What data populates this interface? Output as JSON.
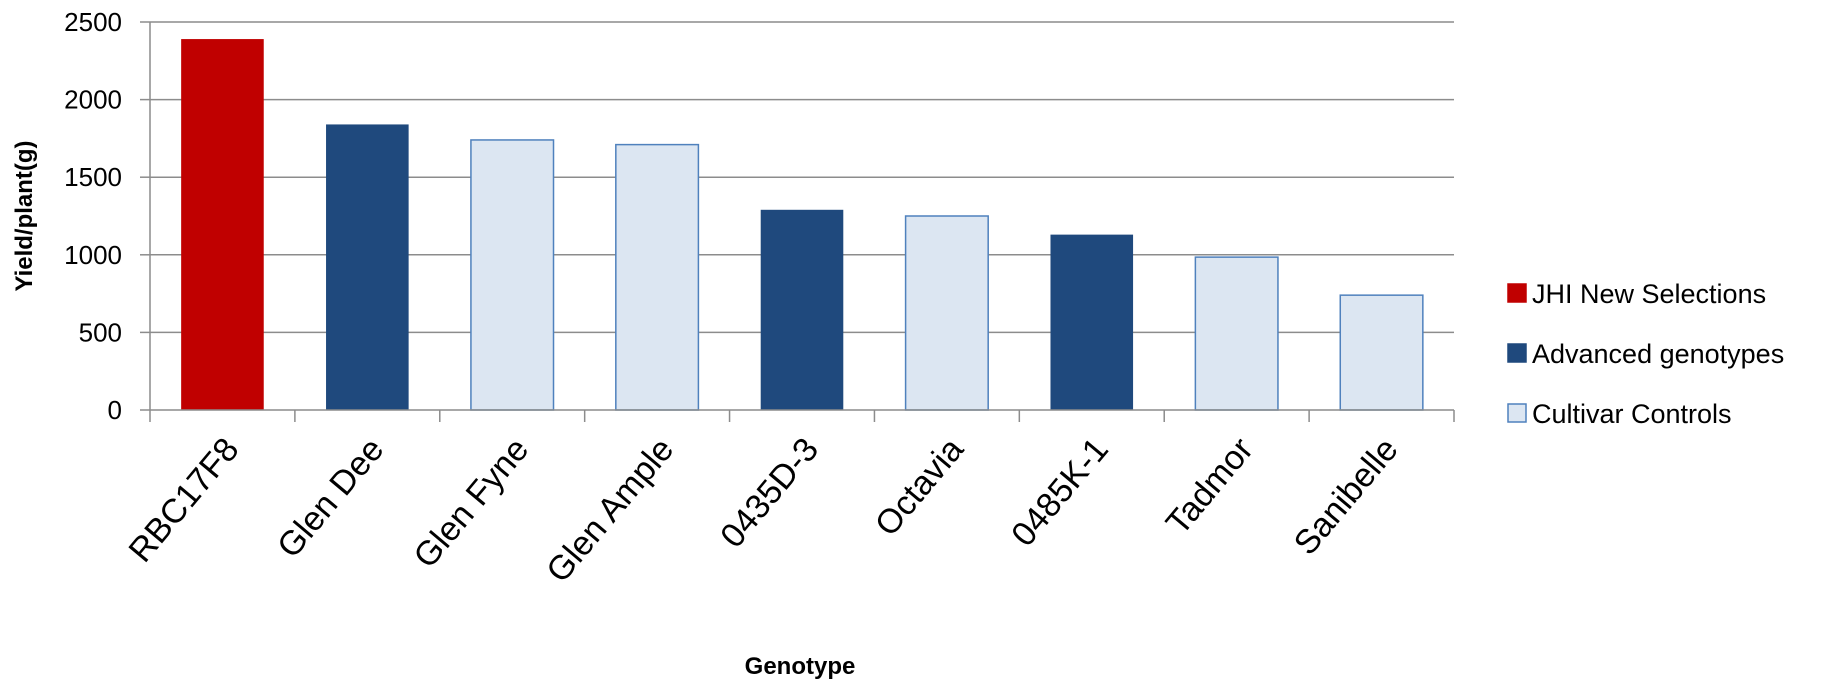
{
  "chart_data": {
    "type": "bar",
    "title": "",
    "xlabel": "Genotype",
    "ylabel": "Yield/plant(g)",
    "ylim": [
      0,
      2500
    ],
    "yticks": [
      0,
      500,
      1000,
      1500,
      2000,
      2500
    ],
    "grid": true,
    "legend_position": "right",
    "categories": [
      "RBC17F8",
      "Glen Dee",
      "Glen Fyne",
      "Glen Ample",
      "0435D-3",
      "Octavia",
      "0485K-1",
      "Tadmor",
      "Sanibelle"
    ],
    "values": [
      2390,
      1840,
      1740,
      1710,
      1290,
      1250,
      1130,
      985,
      740
    ],
    "groups": [
      "JHI New Selections",
      "Advanced genotypes",
      "Cultivar Controls",
      "Cultivar Controls",
      "Advanced genotypes",
      "Cultivar Controls",
      "Advanced genotypes",
      "Cultivar Controls",
      "Cultivar Controls"
    ],
    "legend": [
      {
        "name": "JHI New Selections",
        "color": "#c00000"
      },
      {
        "name": "Advanced genotypes",
        "color": "#1f497d"
      },
      {
        "name": "Cultivar Controls",
        "color": "#dce6f2"
      }
    ]
  }
}
